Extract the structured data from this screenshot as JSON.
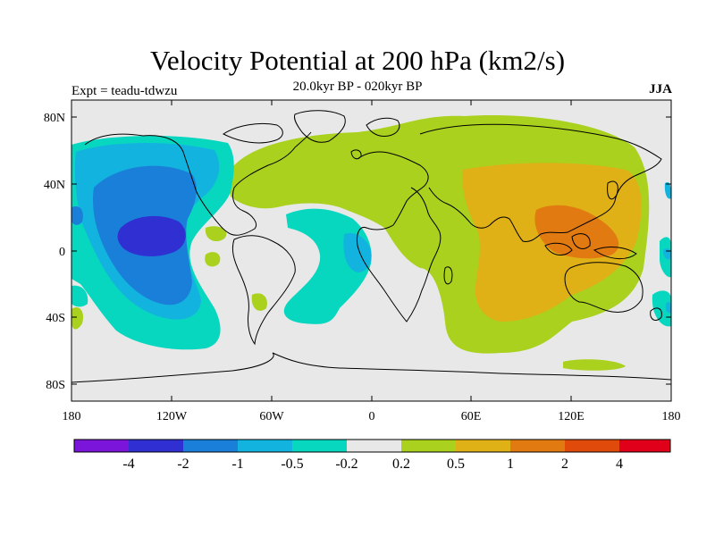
{
  "title": "Velocity Potential at 200 hPa (km2/s)",
  "subtitle": "20.0kyr BP - 020kyr BP",
  "experiment": "Expt = teadu-tdwzu",
  "season": "JJA",
  "map": {
    "projection": "cylindrical-equidistant",
    "lon_ticks": [
      "180",
      "120W",
      "60W",
      "0",
      "60E",
      "120E",
      "180"
    ],
    "lat_ticks": [
      "80N",
      "40N",
      "0",
      "40S",
      "80S"
    ]
  },
  "colorbar": {
    "colors": [
      "#7a15d9",
      "#2f2fd2",
      "#1a7fd9",
      "#13b3e0",
      "#08d7c0",
      "#e8e8e8",
      "#a9d11e",
      "#e0b017",
      "#e17a10",
      "#e04a0a",
      "#e0001a"
    ],
    "labels": [
      "-4",
      "-2",
      "-1",
      "-0.5",
      "-0.2",
      "0.2",
      "0.5",
      "1",
      "2",
      "4"
    ]
  }
}
